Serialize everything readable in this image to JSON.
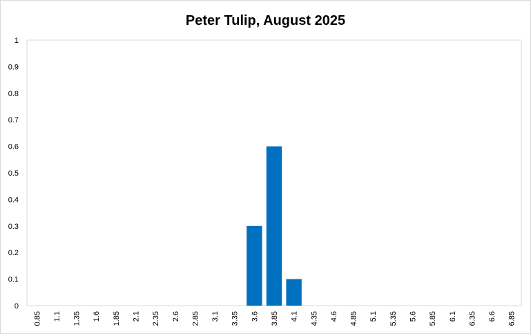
{
  "chart_data": {
    "type": "bar",
    "title": "Peter Tulip, August 2025",
    "xlabel": "",
    "ylabel": "",
    "categories": [
      "0.85",
      "1.1",
      "1.35",
      "1.6",
      "1.85",
      "2.1",
      "2.35",
      "2.6",
      "2.85",
      "3.1",
      "3.35",
      "3.6",
      "3.85",
      "4.1",
      "4.35",
      "4.6",
      "4.85",
      "5.1",
      "5.35",
      "5.6",
      "5.85",
      "6.1",
      "6.35",
      "6.6",
      "6.85"
    ],
    "values": [
      0,
      0,
      0,
      0,
      0,
      0,
      0,
      0,
      0,
      0,
      0,
      0.3,
      0.6,
      0.1,
      0,
      0,
      0,
      0,
      0,
      0,
      0,
      0,
      0,
      0,
      0
    ],
    "ylim": [
      0,
      1
    ],
    "yticks": [
      "0",
      "0.1",
      "0.2",
      "0.3",
      "0.4",
      "0.5",
      "0.6",
      "0.7",
      "0.8",
      "0.9",
      "1"
    ],
    "grid": false,
    "legend": "none",
    "bar_color": "#0070c0"
  }
}
